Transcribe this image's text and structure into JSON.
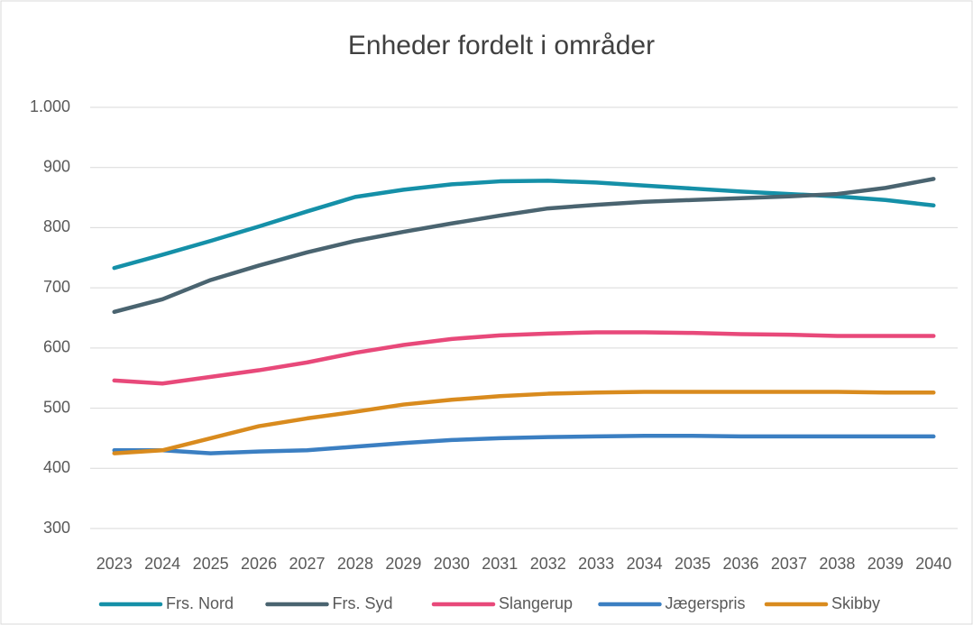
{
  "chart_data": {
    "type": "line",
    "title": "Enheder fordelt i områder",
    "categories": [
      "2023",
      "2024",
      "2025",
      "2026",
      "2027",
      "2028",
      "2029",
      "2030",
      "2031",
      "2032",
      "2033",
      "2034",
      "2035",
      "2036",
      "2037",
      "2038",
      "2039",
      "2040"
    ],
    "series": [
      {
        "name": "Frs. Nord",
        "color": "#1590a8",
        "values": [
          733,
          755,
          778,
          802,
          827,
          851,
          863,
          872,
          877,
          878,
          875,
          870,
          865,
          860,
          856,
          852,
          846,
          837
        ]
      },
      {
        "name": "Frs. Syd",
        "color": "#4a6470",
        "values": [
          660,
          681,
          713,
          737,
          759,
          778,
          793,
          807,
          820,
          832,
          838,
          843,
          846,
          849,
          852,
          856,
          866,
          881
        ]
      },
      {
        "name": "Slangerup",
        "color": "#e8497a",
        "values": [
          546,
          541,
          552,
          563,
          576,
          592,
          605,
          615,
          621,
          624,
          626,
          626,
          625,
          623,
          622,
          620,
          620,
          620
        ]
      },
      {
        "name": "Jægerspris",
        "color": "#3b7fc2",
        "values": [
          430,
          430,
          425,
          428,
          430,
          436,
          442,
          447,
          450,
          452,
          453,
          454,
          454,
          453,
          453,
          453,
          453,
          453
        ]
      },
      {
        "name": "Skibby",
        "color": "#d98b1e",
        "values": [
          425,
          430,
          450,
          470,
          483,
          494,
          506,
          514,
          520,
          524,
          526,
          527,
          527,
          527,
          527,
          527,
          526,
          526
        ]
      }
    ],
    "ylim": [
      300,
      1000
    ],
    "yticks": [
      300,
      400,
      500,
      600,
      700,
      800,
      900,
      {
        "value": 1000,
        "label": "1.000"
      }
    ],
    "grid": true,
    "legend": "bottom"
  }
}
